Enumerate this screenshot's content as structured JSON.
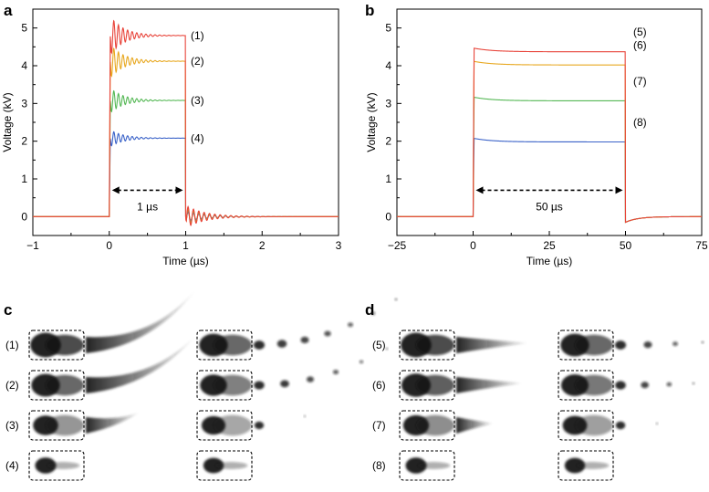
{
  "panel_letters": {
    "a": "a",
    "b": "b",
    "c": "c",
    "d": "d"
  },
  "chart_data": [
    {
      "panel": "a",
      "type": "line",
      "xlabel": "Time (µs)",
      "ylabel": "Voltage (kV)",
      "xlim": [
        -1,
        3
      ],
      "ylim": [
        -0.5,
        5.5
      ],
      "xticks": [
        "−1",
        "0",
        "1",
        "2",
        "3"
      ],
      "yticks": [
        "0",
        "1",
        "2",
        "3",
        "4",
        "5"
      ],
      "annotation": {
        "text": "1 µs",
        "x_from": 0,
        "x_to": 1,
        "y": 0.7
      },
      "pulse": {
        "start": 0,
        "end": 1
      },
      "series": [
        {
          "name": "(1)",
          "color": "#e8443a",
          "plateau": 4.8
        },
        {
          "name": "(2)",
          "color": "#e8a820",
          "plateau": 4.12
        },
        {
          "name": "(3)",
          "color": "#55b855",
          "plateau": 3.08
        },
        {
          "name": "(4)",
          "color": "#3a62c8",
          "plateau": 2.08
        }
      ]
    },
    {
      "panel": "b",
      "type": "line",
      "xlabel": "Time (µs)",
      "ylabel": "Voltage (kV)",
      "xlim": [
        -25,
        75
      ],
      "ylim": [
        -0.5,
        5.5
      ],
      "xticks": [
        "−25",
        "0",
        "25",
        "50",
        "75"
      ],
      "yticks": [
        "0",
        "1",
        "2",
        "3",
        "4",
        "5"
      ],
      "annotation": {
        "text": "50 µs",
        "x_from": 0,
        "x_to": 50,
        "y": 0.7
      },
      "pulse": {
        "start": 0,
        "end": 50
      },
      "series": [
        {
          "name": "(5)",
          "color": "#e8443a",
          "plateau": 4.37
        },
        {
          "name": "(6)",
          "color": "#e8a820",
          "plateau": 4.02
        },
        {
          "name": "(7)",
          "color": "#55b855",
          "plateau": 3.07
        },
        {
          "name": "(8)",
          "color": "#3a62c8",
          "plateau": 1.98
        }
      ]
    }
  ],
  "images": {
    "c_rows": [
      "(1)",
      "(2)",
      "(3)",
      "(4)"
    ],
    "d_rows": [
      "(5)",
      "(6)",
      "(7)",
      "(8)"
    ]
  }
}
